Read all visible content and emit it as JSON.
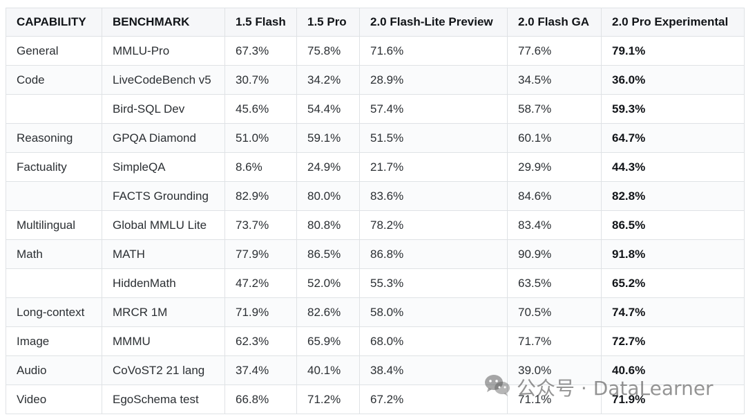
{
  "table": {
    "headers": [
      "CAPABILITY",
      "BENCHMARK",
      "1.5 Flash",
      "1.5 Pro",
      "2.0 Flash-Lite Preview",
      "2.0 Flash GA",
      "2.0 Pro Experimental"
    ],
    "rows": [
      [
        "General",
        "MMLU-Pro",
        "67.3%",
        "75.8%",
        "71.6%",
        "77.6%",
        "79.1%"
      ],
      [
        "Code",
        "LiveCodeBench v5",
        "30.7%",
        "34.2%",
        "28.9%",
        "34.5%",
        "36.0%"
      ],
      [
        "",
        "Bird-SQL Dev",
        "45.6%",
        "54.4%",
        "57.4%",
        "58.7%",
        "59.3%"
      ],
      [
        "Reasoning",
        "GPQA Diamond",
        "51.0%",
        "59.1%",
        "51.5%",
        "60.1%",
        "64.7%"
      ],
      [
        "Factuality",
        "SimpleQA",
        "8.6%",
        "24.9%",
        "21.7%",
        "29.9%",
        "44.3%"
      ],
      [
        "",
        "FACTS Grounding",
        "82.9%",
        "80.0%",
        "83.6%",
        "84.6%",
        "82.8%"
      ],
      [
        "Multilingual",
        "Global MMLU Lite",
        "73.7%",
        "80.8%",
        "78.2%",
        "83.4%",
        "86.5%"
      ],
      [
        "Math",
        "MATH",
        "77.9%",
        "86.5%",
        "86.8%",
        "90.9%",
        "91.8%"
      ],
      [
        "",
        "HiddenMath",
        "47.2%",
        "52.0%",
        "55.3%",
        "63.5%",
        "65.2%"
      ],
      [
        "Long-context",
        "MRCR 1M",
        "71.9%",
        "82.6%",
        "58.0%",
        "70.5%",
        "74.7%"
      ],
      [
        "Image",
        "MMMU",
        "62.3%",
        "65.9%",
        "68.0%",
        "71.7%",
        "72.7%"
      ],
      [
        "Audio",
        "CoVoST2 21 lang",
        "37.4%",
        "40.1%",
        "38.4%",
        "39.0%",
        "40.6%"
      ],
      [
        "Video",
        "EgoSchema test",
        "66.8%",
        "71.2%",
        "67.2%",
        "71.1%",
        "71.9%"
      ]
    ]
  },
  "watermark": {
    "icon": "wechat-icon",
    "text": "公众号 · DataLearner"
  },
  "colors": {
    "border": "#dfe2e5",
    "header_bg": "#f6f7f9",
    "text": "#2b2f33"
  }
}
